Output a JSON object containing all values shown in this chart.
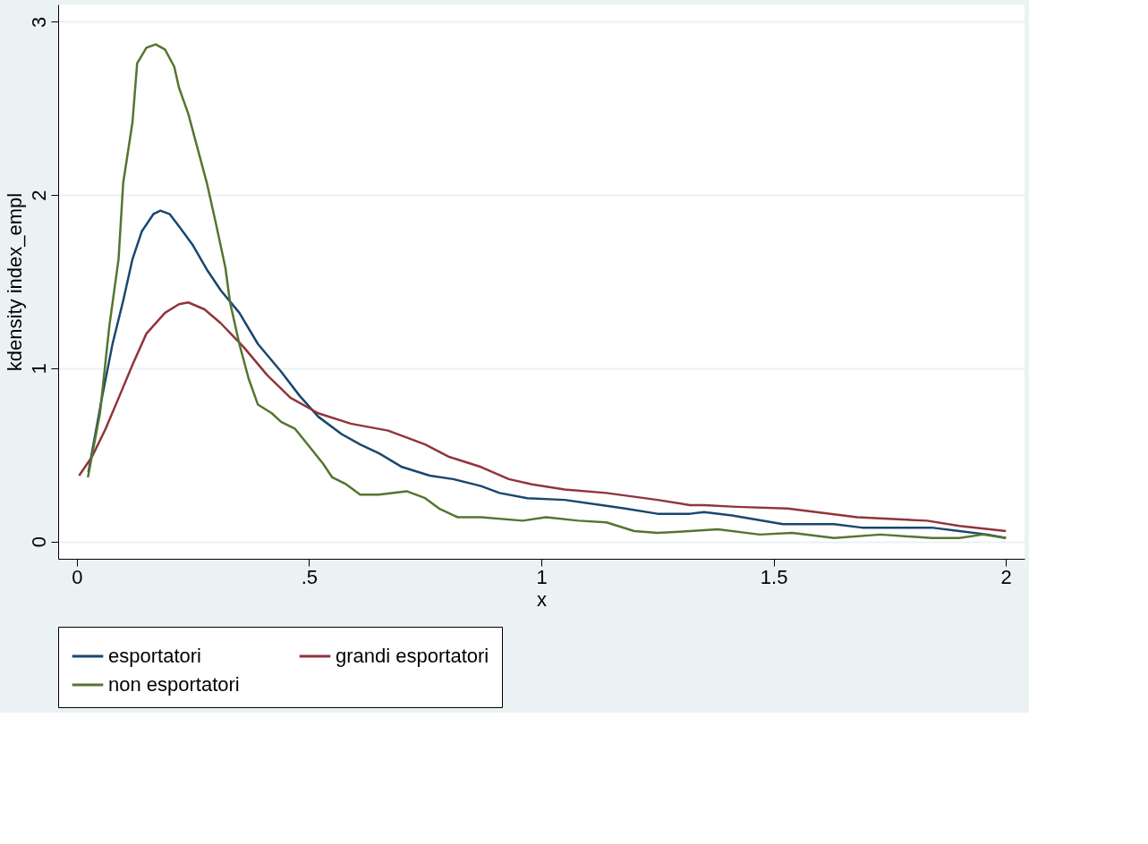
{
  "chart_data": {
    "type": "line",
    "xlabel": "x",
    "ylabel": "kdensity index_empl",
    "xlim": [
      -0.04,
      2.04
    ],
    "ylim": [
      -0.1,
      3.1
    ],
    "xticks": [
      0,
      {
        "value": 0.5,
        "label": ".5"
      },
      1,
      1.5,
      2
    ],
    "yticks": [
      0,
      1,
      2,
      3
    ],
    "grid": "y",
    "legend": "bottom",
    "line_style": "solid",
    "marker": "none",
    "series": [
      {
        "name": "esportatori",
        "color": "#1a476f",
        "x": [
          0.025,
          0.055,
          0.077,
          0.1,
          0.12,
          0.14,
          0.165,
          0.18,
          0.2,
          0.22,
          0.25,
          0.28,
          0.31,
          0.35,
          0.39,
          0.44,
          0.48,
          0.52,
          0.57,
          0.61,
          0.65,
          0.7,
          0.76,
          0.81,
          0.87,
          0.91,
          0.97,
          1.05,
          1.13,
          1.18,
          1.25,
          1.32,
          1.35,
          1.41,
          1.52,
          1.63,
          1.69,
          1.84,
          1.9,
          1.96,
          2.0
        ],
        "values": [
          0.4,
          0.84,
          1.14,
          1.39,
          1.63,
          1.79,
          1.89,
          1.91,
          1.89,
          1.82,
          1.71,
          1.57,
          1.45,
          1.32,
          1.14,
          0.98,
          0.84,
          0.72,
          0.62,
          0.56,
          0.51,
          0.43,
          0.38,
          0.36,
          0.32,
          0.28,
          0.25,
          0.24,
          0.21,
          0.19,
          0.16,
          0.16,
          0.17,
          0.15,
          0.1,
          0.1,
          0.08,
          0.08,
          0.06,
          0.04,
          0.02
        ]
      },
      {
        "name": "grandi esportatori",
        "color": "#90353b",
        "x": [
          0.005,
          0.033,
          0.062,
          0.092,
          0.12,
          0.15,
          0.19,
          0.22,
          0.24,
          0.275,
          0.31,
          0.36,
          0.41,
          0.46,
          0.52,
          0.59,
          0.67,
          0.7,
          0.75,
          0.8,
          0.87,
          0.93,
          0.98,
          1.05,
          1.14,
          1.25,
          1.32,
          1.35,
          1.42,
          1.53,
          1.68,
          1.83,
          1.9,
          2.0
        ],
        "values": [
          0.38,
          0.49,
          0.65,
          0.84,
          1.02,
          1.2,
          1.32,
          1.37,
          1.38,
          1.34,
          1.26,
          1.12,
          0.96,
          0.83,
          0.74,
          0.68,
          0.64,
          0.61,
          0.56,
          0.49,
          0.43,
          0.36,
          0.33,
          0.3,
          0.28,
          0.24,
          0.21,
          0.21,
          0.2,
          0.19,
          0.14,
          0.12,
          0.09,
          0.06
        ]
      },
      {
        "name": "non esportatori",
        "color": "#55752f",
        "x": [
          0.024,
          0.05,
          0.07,
          0.09,
          0.1,
          0.12,
          0.13,
          0.15,
          0.17,
          0.19,
          0.21,
          0.22,
          0.24,
          0.26,
          0.28,
          0.3,
          0.32,
          0.33,
          0.35,
          0.37,
          0.39,
          0.42,
          0.44,
          0.47,
          0.5,
          0.53,
          0.55,
          0.58,
          0.61,
          0.65,
          0.71,
          0.75,
          0.78,
          0.82,
          0.87,
          0.96,
          1.01,
          1.08,
          1.14,
          1.2,
          1.25,
          1.32,
          1.38,
          1.47,
          1.54,
          1.63,
          1.73,
          1.84,
          1.9,
          1.95,
          2.0
        ],
        "values": [
          0.37,
          0.74,
          1.24,
          1.63,
          2.07,
          2.42,
          2.76,
          2.85,
          2.87,
          2.84,
          2.74,
          2.62,
          2.47,
          2.27,
          2.07,
          1.83,
          1.58,
          1.38,
          1.14,
          0.94,
          0.79,
          0.74,
          0.69,
          0.65,
          0.55,
          0.45,
          0.37,
          0.33,
          0.27,
          0.27,
          0.29,
          0.25,
          0.19,
          0.14,
          0.14,
          0.12,
          0.14,
          0.12,
          0.11,
          0.06,
          0.05,
          0.06,
          0.07,
          0.04,
          0.05,
          0.02,
          0.04,
          0.02,
          0.02,
          0.04,
          0.02
        ]
      }
    ]
  }
}
